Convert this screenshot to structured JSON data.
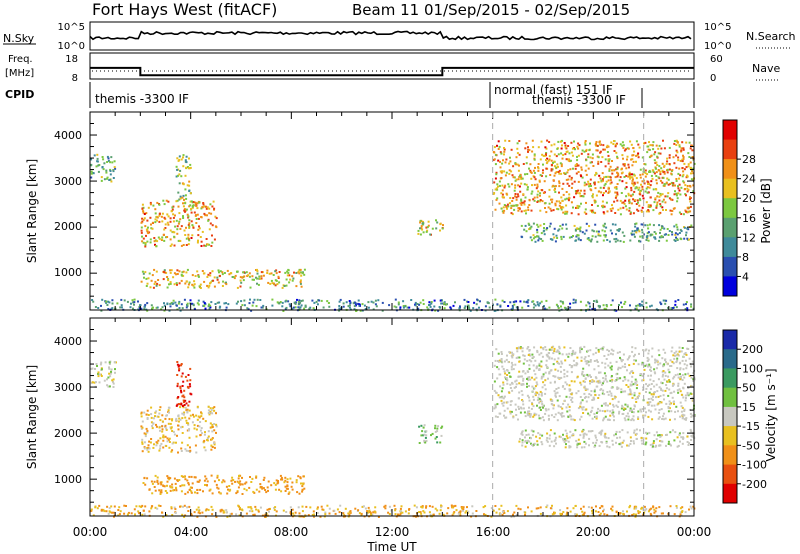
{
  "header": {
    "station": "Fort Hays West (fitACF)",
    "beam_info": "Beam 11  01/Sep/2015 - 02/Sep/2015"
  },
  "noise_panel": {
    "left_label": "N.Sky",
    "left_ticks": [
      "10^5",
      "10^0"
    ],
    "right_label": "N.Search",
    "right_ticks": [
      "10^5",
      "10^0"
    ]
  },
  "freq_panel": {
    "left_label_line1": "Freq.",
    "left_label_line2": "[MHz]",
    "left_ticks": [
      "18",
      "8"
    ],
    "right_label": "Nave",
    "right_ticks": [
      "60",
      "0"
    ]
  },
  "cpid_panel": {
    "label": "CPID",
    "modes": [
      "themis -3300 IF",
      "normal (fast) 151 IF",
      "themis -3300 IF"
    ]
  },
  "power_panel": {
    "ylabel": "Slant Range [km]",
    "yticks": [
      "1000",
      "2000",
      "3000",
      "4000"
    ],
    "colorbar_label": "Power [dB]",
    "colorbar_ticks": [
      "4",
      "8",
      "12",
      "16",
      "20",
      "24",
      "28"
    ],
    "colors": [
      "#0000dd",
      "#2a4fb0",
      "#3f8a9a",
      "#5aa070",
      "#7cc840",
      "#e8c020",
      "#f09018",
      "#e84010",
      "#e00000"
    ]
  },
  "velocity_panel": {
    "ylabel": "Slant Range [km]",
    "yticks": [
      "1000",
      "2000",
      "3000",
      "4000"
    ],
    "colorbar_label": "Velocity [m s⁻¹]",
    "colorbar_ticks": [
      "200",
      "100",
      "50",
      "15",
      "-15",
      "-50",
      "-100",
      "-200"
    ],
    "colors": [
      "#1a2aa8",
      "#2a6a8a",
      "#3a9a60",
      "#70c040",
      "#c8c8c0",
      "#e8c020",
      "#f09018",
      "#e85010",
      "#e00000"
    ]
  },
  "xaxis": {
    "label": "Time UT",
    "ticks": [
      "00:00",
      "04:00",
      "08:00",
      "12:00",
      "16:00",
      "20:00",
      "00:00"
    ]
  },
  "chart_data": {
    "type": "heatmap",
    "x_range_hours": [
      0,
      24
    ],
    "y_range_km": [
      200,
      4500
    ],
    "mode_change_hours": [
      16.0,
      22.0
    ],
    "frequency_mhz": [
      {
        "start_hour": 0.0,
        "end_hour": 2.0,
        "value": 12
      },
      {
        "start_hour": 2.0,
        "end_hour": 14.0,
        "value": 8
      },
      {
        "start_hour": 14.0,
        "end_hour": 24.0,
        "value": 12
      }
    ],
    "scatter_regions": [
      {
        "t_start": 2.0,
        "t_end": 5.0,
        "range_km": [
          1600,
          2600
        ],
        "power_db": 20,
        "velocity": -20
      },
      {
        "t_start": 3.4,
        "t_end": 4.0,
        "range_km": [
          2600,
          3600
        ],
        "power_db": 14,
        "velocity": -150
      },
      {
        "t_start": 2.0,
        "t_end": 8.5,
        "range_km": [
          700,
          1100
        ],
        "power_db": 18,
        "velocity": -40
      },
      {
        "t_start": 0.0,
        "t_end": 1.0,
        "range_km": [
          3000,
          3600
        ],
        "power_db": 10,
        "velocity": 0
      },
      {
        "t_start": 13.0,
        "t_end": 14.0,
        "range_km": [
          1800,
          2200
        ],
        "power_db": 18,
        "velocity": 20
      },
      {
        "t_start": 16.0,
        "t_end": 24.0,
        "range_km": [
          2300,
          3900
        ],
        "power_db": 20,
        "velocity": 0
      },
      {
        "t_start": 17.0,
        "t_end": 24.0,
        "range_km": [
          1700,
          2100
        ],
        "power_db": 10,
        "velocity": 0
      },
      {
        "t_start": 0.0,
        "t_end": 24.0,
        "range_km": [
          200,
          450
        ],
        "power_db": 8,
        "velocity": -30
      }
    ]
  }
}
